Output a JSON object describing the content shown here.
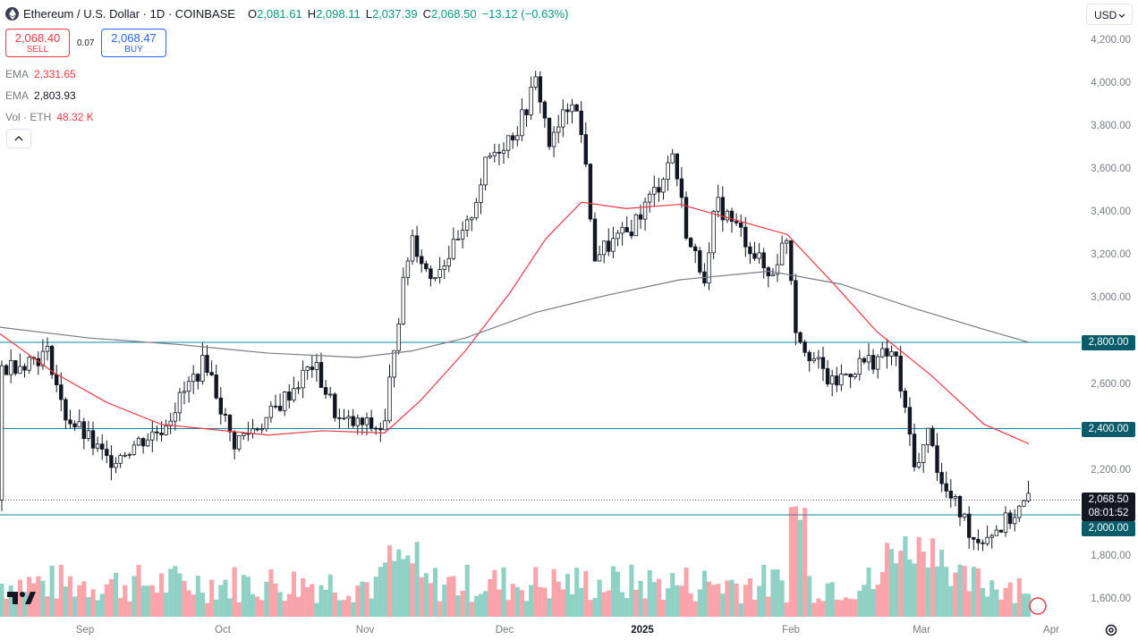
{
  "header": {
    "symbol_title": "Ethereum / U.S. Dollar · 1D · COINBASE",
    "open_key": "O",
    "open": "2,081.61",
    "high_key": "H",
    "high": "2,098.11",
    "low_key": "L",
    "low": "2,037.39",
    "close_key": "C",
    "close": "2,068.50",
    "change": "−13.12 (−0.63%)"
  },
  "trade": {
    "sell_price": "2,068.40",
    "sell_label": "SELL",
    "spread": "0.07",
    "buy_price": "2,068.47",
    "buy_label": "BUY"
  },
  "indicators": [
    {
      "name": "EMA",
      "value": "2,331.65",
      "color": "#f23645"
    },
    {
      "name": "EMA",
      "value": "2,803.93",
      "color": "#787b86"
    },
    {
      "name": "Vol · ETH",
      "value": "48.32 K",
      "color": "#f23645"
    }
  ],
  "currency": "USD",
  "y_axis": [
    "4,200.00",
    "4,000.00",
    "3,800.00",
    "3,600.00",
    "3,400.00",
    "3,200.00",
    "3,000.00",
    "2,800.00",
    "2,600.00",
    "2,400.00",
    "2,200.00",
    "2,000.00",
    "1,800.00",
    "1,600.00"
  ],
  "x_axis": [
    {
      "label": "Sep",
      "bold": false
    },
    {
      "label": "Oct",
      "bold": false
    },
    {
      "label": "Nov",
      "bold": false
    },
    {
      "label": "Dec",
      "bold": false
    },
    {
      "label": "2025",
      "bold": true
    },
    {
      "label": "Feb",
      "bold": false
    },
    {
      "label": "Mar",
      "bold": false
    },
    {
      "label": "Apr",
      "bold": false
    }
  ],
  "price_tags": {
    "level_2800": "2,800.00",
    "level_2400": "2,400.00",
    "level_2000": "2,000.00",
    "last_price": "2,068.50",
    "countdown": "08:01:52"
  },
  "colors": {
    "up": "#089981",
    "down": "#f23645",
    "candle": "#131722",
    "ema_fast": "#f23645",
    "ema_slow": "#787b86",
    "hline": "#0a8aa6"
  },
  "chart_data": {
    "type": "candlestick",
    "horizontal_levels": [
      2800,
      2400,
      2000
    ],
    "ylim": [
      1550,
      4250
    ],
    "last_price": 2068.5,
    "candles_sample": [
      {
        "o": 2081.61,
        "h": 2098.11,
        "l": 2037.39,
        "c": 2068.5
      }
    ]
  }
}
